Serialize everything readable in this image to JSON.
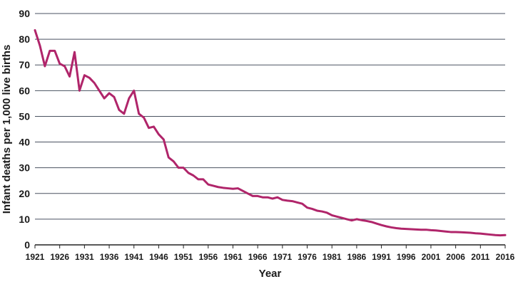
{
  "chart_data": {
    "type": "line",
    "title": "",
    "xlabel": "Year",
    "ylabel": "Infant deaths per 1,000 live births",
    "xlim": [
      1921,
      2016
    ],
    "ylim": [
      0,
      90
    ],
    "y_ticks": [
      0,
      10,
      20,
      30,
      40,
      50,
      60,
      70,
      80,
      90
    ],
    "x_ticks": [
      1921,
      1926,
      1931,
      1936,
      1941,
      1946,
      1951,
      1956,
      1961,
      1966,
      1971,
      1976,
      1981,
      1986,
      1991,
      1996,
      2001,
      2006,
      2011,
      2016
    ],
    "y_tick_labels": [
      "0",
      "10",
      "20",
      "30",
      "40",
      "50",
      "60",
      "70",
      "80",
      "90"
    ],
    "x_tick_labels": [
      "1921",
      "1926",
      "1931",
      "1936",
      "1941",
      "1946",
      "1951",
      "1956",
      "1961",
      "1966",
      "1971",
      "1976",
      "1981",
      "1986",
      "1991",
      "1996",
      "2001",
      "2006",
      "2011",
      "2016"
    ],
    "grid": true,
    "legend": "none",
    "line_color": "#b0256a",
    "series": [
      {
        "x": [
          1921,
          1922,
          1923,
          1924,
          1925,
          1926,
          1927,
          1928,
          1929,
          1930,
          1931,
          1932,
          1933,
          1934,
          1935,
          1936,
          1937,
          1938,
          1939,
          1940,
          1941,
          1942,
          1943,
          1944,
          1945,
          1946,
          1947,
          1948,
          1949,
          1950,
          1951,
          1952,
          1953,
          1954,
          1955,
          1956,
          1957,
          1958,
          1959,
          1960,
          1961,
          1962,
          1963,
          1964,
          1965,
          1966,
          1967,
          1968,
          1969,
          1970,
          1971,
          1972,
          1973,
          1974,
          1975,
          1976,
          1977,
          1978,
          1979,
          1980,
          1981,
          1982,
          1983,
          1984,
          1985,
          1986,
          1987,
          1988,
          1989,
          1990,
          1991,
          1992,
          1993,
          1994,
          1995,
          1996,
          1997,
          1998,
          1999,
          2000,
          2001,
          2002,
          2003,
          2004,
          2005,
          2006,
          2007,
          2008,
          2009,
          2010,
          2011,
          2012,
          2013,
          2014,
          2015,
          2016
        ],
        "values": [
          83.5,
          77.5,
          69.5,
          75.5,
          75.5,
          70.5,
          69.5,
          65.5,
          75.0,
          60.0,
          66.0,
          65.0,
          63.0,
          60.0,
          57.0,
          59.0,
          57.5,
          52.5,
          51.0,
          57.0,
          60.0,
          51.0,
          49.5,
          45.5,
          46.0,
          43.0,
          41.0,
          34.0,
          32.5,
          30.0,
          30.0,
          28.0,
          27.0,
          25.5,
          25.5,
          23.5,
          23.0,
          22.5,
          22.2,
          22.0,
          21.8,
          22.0,
          21.0,
          20.0,
          19.0,
          19.0,
          18.5,
          18.5,
          18.0,
          18.5,
          17.5,
          17.2,
          17.0,
          16.5,
          16.0,
          14.5,
          14.0,
          13.3,
          13.0,
          12.5,
          11.5,
          11.0,
          10.5,
          10.0,
          9.5,
          10.0,
          9.6,
          9.3,
          8.9,
          8.3,
          7.7,
          7.2,
          6.8,
          6.5,
          6.3,
          6.2,
          6.1,
          6.0,
          5.9,
          5.9,
          5.7,
          5.6,
          5.4,
          5.2,
          5.0,
          5.0,
          4.9,
          4.8,
          4.7,
          4.5,
          4.4,
          4.2,
          4.0,
          3.8,
          3.7,
          3.8
        ]
      }
    ]
  }
}
